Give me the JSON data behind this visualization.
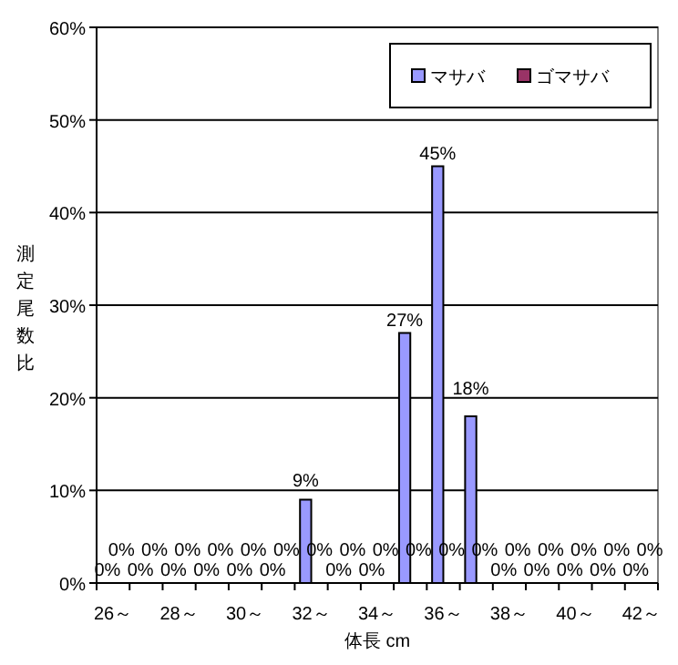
{
  "chart_data": {
    "type": "bar",
    "xlabel": "体長 cm",
    "ylabel": "測定尾数比",
    "categories": [
      "26～",
      null,
      "28～",
      null,
      "30～",
      null,
      "32～",
      null,
      "34～",
      null,
      "36～",
      null,
      "38～",
      null,
      "40～",
      null,
      "42～"
    ],
    "series": [
      {
        "name": "マサバ",
        "color": "#9999ff",
        "values": [
          0,
          0,
          0,
          0,
          0,
          0,
          9,
          0,
          0,
          27,
          45,
          18,
          0,
          0,
          0,
          0,
          0
        ],
        "value_labels": [
          "0%",
          "0%",
          "0%",
          "0%",
          "0%",
          "0%",
          "9%",
          "0%",
          "0%",
          "27%",
          "45%",
          "18%",
          "0%",
          "0%",
          "0%",
          "0%",
          "0%"
        ]
      },
      {
        "name": "ゴマサバ",
        "color": "#993366",
        "values": [
          0,
          0,
          0,
          0,
          0,
          0,
          0,
          0,
          0,
          0,
          0,
          0,
          0,
          0,
          0,
          0,
          0
        ],
        "value_labels": [
          "0%",
          "0%",
          "0%",
          "0%",
          "0%",
          "0%",
          "0%",
          "0%",
          "0%",
          "0%",
          "0%",
          "0%",
          "0%",
          "0%",
          "0%",
          "0%",
          "0%"
        ]
      }
    ],
    "ylim": [
      0,
      60
    ],
    "yticks": [
      {
        "value": 0,
        "label": "0%"
      },
      {
        "value": 10,
        "label": "10%"
      },
      {
        "value": 20,
        "label": "20%"
      },
      {
        "value": 30,
        "label": "30%"
      },
      {
        "value": 40,
        "label": "40%"
      },
      {
        "value": 50,
        "label": "50%"
      },
      {
        "value": 60,
        "label": "60%"
      }
    ],
    "grid": "y",
    "legend": "top right"
  }
}
